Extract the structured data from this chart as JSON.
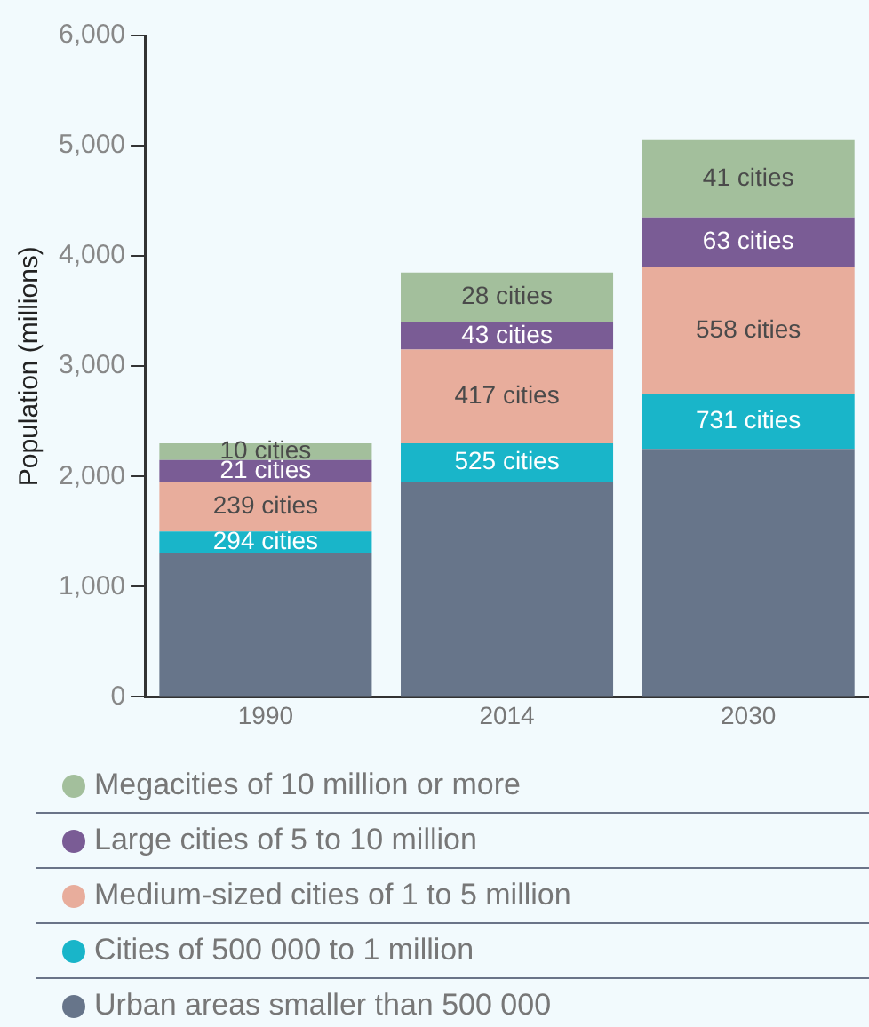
{
  "chart_data": {
    "type": "bar",
    "stacked": true,
    "ylabel": "Population (millions)",
    "categories": [
      "1990",
      "2014",
      "2030"
    ],
    "ylim": [
      0,
      6000
    ],
    "yticks": [
      {
        "value": 0,
        "label": "0"
      },
      {
        "value": 1000,
        "label": "1,000"
      },
      {
        "value": 2000,
        "label": "2,000"
      },
      {
        "value": 3000,
        "label": "3,000"
      },
      {
        "value": 4000,
        "label": "4,000"
      },
      {
        "value": 5000,
        "label": "5,000"
      },
      {
        "value": 6000,
        "label": "6,000"
      }
    ],
    "grid": false,
    "legend": "bottom",
    "series": [
      {
        "name": "Urban areas smaller than 500 000",
        "color": "#67758a",
        "values": [
          1300,
          1950,
          2250
        ]
      },
      {
        "name": "Cities of 500 000 to 1 million",
        "color": "#19b5c9",
        "values": [
          200,
          350,
          500
        ]
      },
      {
        "name": "Medium-sized cities of 1 to 5 million",
        "color": "#e8ad9c",
        "values": [
          450,
          850,
          1150
        ]
      },
      {
        "name": "Large cities of 5 to 10 million",
        "color": "#7a5c95",
        "values": [
          200,
          250,
          450
        ]
      },
      {
        "name": "Megacities of 10 million or more",
        "color": "#a3bf9c",
        "values": [
          150,
          450,
          700
        ]
      }
    ],
    "annotations": [
      "294 cities",
      "239 cities",
      "21 cities",
      "10 cities",
      "525 cities",
      "417 cities",
      "43 cities",
      "28 cities",
      "731 cities",
      "558 cities",
      "63 cities",
      "41 cities"
    ]
  }
}
